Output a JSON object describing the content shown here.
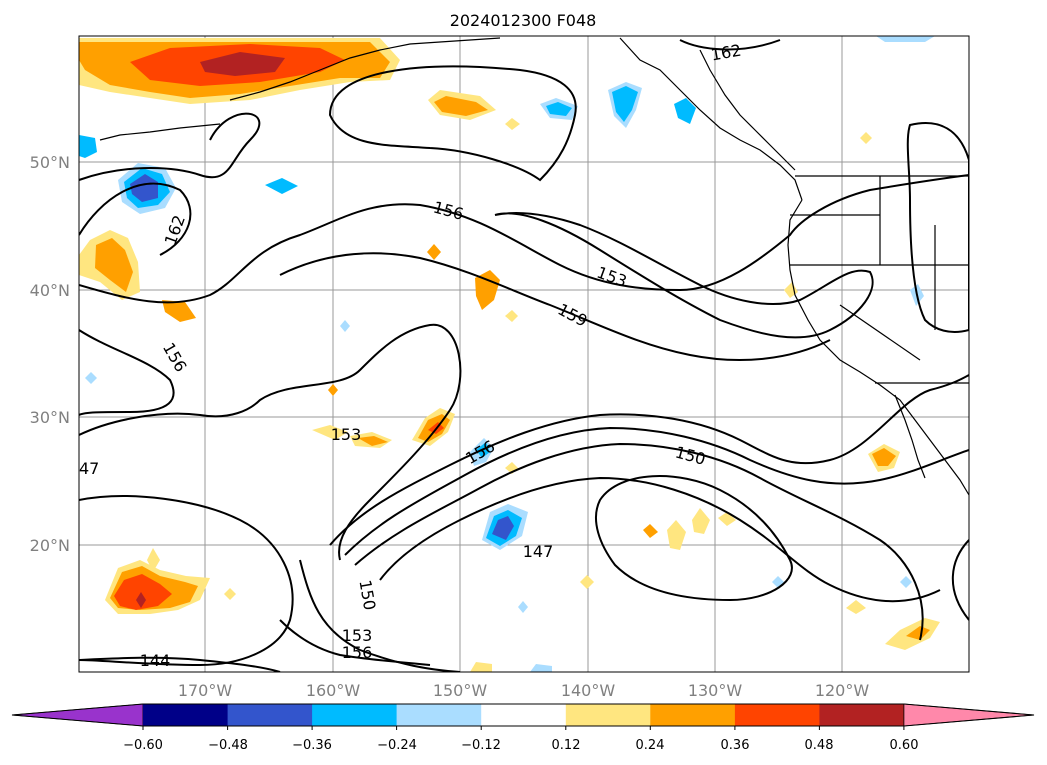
{
  "title": "2024012300 F048",
  "lat_labels": [
    "50°N",
    "40°N",
    "30°N",
    "20°N"
  ],
  "lon_labels": [
    "170°W",
    "160°W",
    "150°W",
    "140°W",
    "130°W",
    "120°W"
  ],
  "colorbar": {
    "ticks": [
      "−0.60",
      "−0.48",
      "−0.36",
      "−0.24",
      "−0.12",
      "0.12",
      "0.24",
      "0.36",
      "0.48",
      "0.60"
    ],
    "colors": [
      "#9933cc",
      "#000088",
      "#3355cc",
      "#00bbff",
      "#aaddff",
      "#ffffff",
      "#ffe680",
      "#ffa000",
      "#ff4400",
      "#b22222",
      "#ff88aa"
    ]
  },
  "contour_labels": [
    "162",
    "162",
    "156",
    "153",
    "159",
    "156",
    "153",
    "156",
    "150",
    "147",
    "150",
    "153",
    "156",
    "144",
    "47"
  ]
}
